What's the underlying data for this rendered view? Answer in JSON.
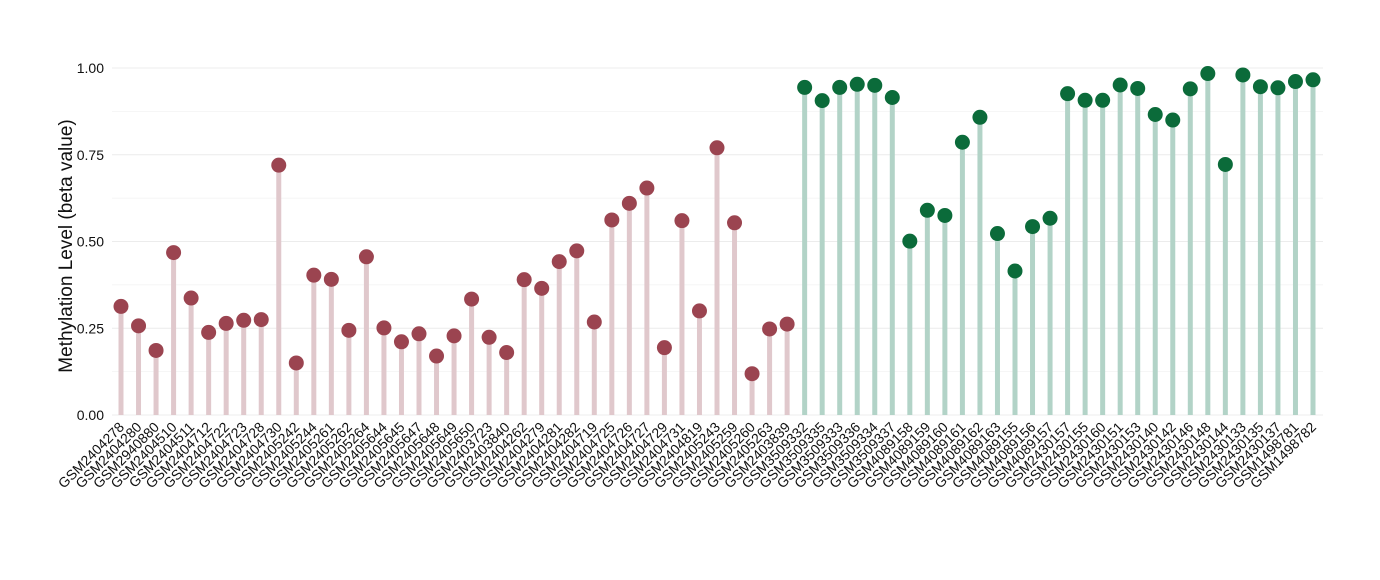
{
  "chart_data": {
    "type": "lollipop",
    "title": "",
    "xlabel": "",
    "ylabel": "Methylation Level (beta value)",
    "ylim": [
      0,
      1
    ],
    "yticks": [
      "0.00",
      "0.25",
      "0.50",
      "0.75",
      "1.00"
    ],
    "grid": "horizontal",
    "legend": "none",
    "colors": {
      "group1_point": "#9b4450",
      "group1_stem": "#e0c8cc",
      "group2_point": "#0b6b3a",
      "group2_stem": "#b2d3c7",
      "grid": "#ececec"
    },
    "points": [
      {
        "label": "GSM2404278",
        "value": 0.313,
        "group": 1
      },
      {
        "label": "GSM2404280",
        "value": 0.257,
        "group": 1
      },
      {
        "label": "GSM2940880",
        "value": 0.186,
        "group": 1
      },
      {
        "label": "GSM2404510",
        "value": 0.468,
        "group": 1
      },
      {
        "label": "GSM2404511",
        "value": 0.337,
        "group": 1
      },
      {
        "label": "GSM2404712",
        "value": 0.238,
        "group": 1
      },
      {
        "label": "GSM2404722",
        "value": 0.264,
        "group": 1
      },
      {
        "label": "GSM2404723",
        "value": 0.273,
        "group": 1
      },
      {
        "label": "GSM2404728",
        "value": 0.275,
        "group": 1
      },
      {
        "label": "GSM2404730",
        "value": 0.72,
        "group": 1
      },
      {
        "label": "GSM2405242",
        "value": 0.15,
        "group": 1
      },
      {
        "label": "GSM2405244",
        "value": 0.403,
        "group": 1
      },
      {
        "label": "GSM2405261",
        "value": 0.391,
        "group": 1
      },
      {
        "label": "GSM2405262",
        "value": 0.244,
        "group": 1
      },
      {
        "label": "GSM2405264",
        "value": 0.456,
        "group": 1
      },
      {
        "label": "GSM2405644",
        "value": 0.251,
        "group": 1
      },
      {
        "label": "GSM2405645",
        "value": 0.211,
        "group": 1
      },
      {
        "label": "GSM2405647",
        "value": 0.234,
        "group": 1
      },
      {
        "label": "GSM2405648",
        "value": 0.17,
        "group": 1
      },
      {
        "label": "GSM2405649",
        "value": 0.228,
        "group": 1
      },
      {
        "label": "GSM2405650",
        "value": 0.334,
        "group": 1
      },
      {
        "label": "GSM2403723",
        "value": 0.224,
        "group": 1
      },
      {
        "label": "GSM2403840",
        "value": 0.18,
        "group": 1
      },
      {
        "label": "GSM2404262",
        "value": 0.39,
        "group": 1
      },
      {
        "label": "GSM2404279",
        "value": 0.365,
        "group": 1
      },
      {
        "label": "GSM2404281",
        "value": 0.442,
        "group": 1
      },
      {
        "label": "GSM2404282",
        "value": 0.473,
        "group": 1
      },
      {
        "label": "GSM2404719",
        "value": 0.268,
        "group": 1
      },
      {
        "label": "GSM2404725",
        "value": 0.562,
        "group": 1
      },
      {
        "label": "GSM2404726",
        "value": 0.61,
        "group": 1
      },
      {
        "label": "GSM2404727",
        "value": 0.654,
        "group": 1
      },
      {
        "label": "GSM2404729",
        "value": 0.194,
        "group": 1
      },
      {
        "label": "GSM2404731",
        "value": 0.56,
        "group": 1
      },
      {
        "label": "GSM2404819",
        "value": 0.3,
        "group": 1
      },
      {
        "label": "GSM2405243",
        "value": 0.77,
        "group": 1
      },
      {
        "label": "GSM2405259",
        "value": 0.554,
        "group": 1
      },
      {
        "label": "GSM2405260",
        "value": 0.119,
        "group": 1
      },
      {
        "label": "GSM2405263",
        "value": 0.248,
        "group": 1
      },
      {
        "label": "GSM2403839",
        "value": 0.262,
        "group": 1
      },
      {
        "label": "GSM3509332",
        "value": 0.944,
        "group": 2
      },
      {
        "label": "GSM3509335",
        "value": 0.906,
        "group": 2
      },
      {
        "label": "GSM3509333",
        "value": 0.944,
        "group": 2
      },
      {
        "label": "GSM3509336",
        "value": 0.953,
        "group": 2
      },
      {
        "label": "GSM3509334",
        "value": 0.95,
        "group": 2
      },
      {
        "label": "GSM3509337",
        "value": 0.915,
        "group": 2
      },
      {
        "label": "GSM4089158",
        "value": 0.501,
        "group": 2
      },
      {
        "label": "GSM4089159",
        "value": 0.59,
        "group": 2
      },
      {
        "label": "GSM4089160",
        "value": 0.575,
        "group": 2
      },
      {
        "label": "GSM4089161",
        "value": 0.786,
        "group": 2
      },
      {
        "label": "GSM4089162",
        "value": 0.858,
        "group": 2
      },
      {
        "label": "GSM4089163",
        "value": 0.523,
        "group": 2
      },
      {
        "label": "GSM4089155",
        "value": 0.415,
        "group": 2
      },
      {
        "label": "GSM4089156",
        "value": 0.543,
        "group": 2
      },
      {
        "label": "GSM4089157",
        "value": 0.567,
        "group": 2
      },
      {
        "label": "GSM2430157",
        "value": 0.926,
        "group": 2
      },
      {
        "label": "GSM2430155",
        "value": 0.907,
        "group": 2
      },
      {
        "label": "GSM2430160",
        "value": 0.907,
        "group": 2
      },
      {
        "label": "GSM2430151",
        "value": 0.951,
        "group": 2
      },
      {
        "label": "GSM2430153",
        "value": 0.941,
        "group": 2
      },
      {
        "label": "GSM2430140",
        "value": 0.866,
        "group": 2
      },
      {
        "label": "GSM2430142",
        "value": 0.85,
        "group": 2
      },
      {
        "label": "GSM2430146",
        "value": 0.94,
        "group": 2
      },
      {
        "label": "GSM2430148",
        "value": 0.984,
        "group": 2
      },
      {
        "label": "GSM2430144",
        "value": 0.722,
        "group": 2
      },
      {
        "label": "GSM2430133",
        "value": 0.98,
        "group": 2
      },
      {
        "label": "GSM2430135",
        "value": 0.946,
        "group": 2
      },
      {
        "label": "GSM2430137",
        "value": 0.943,
        "group": 2
      },
      {
        "label": "GSM1498781",
        "value": 0.961,
        "group": 2
      },
      {
        "label": "GSM1498782",
        "value": 0.966,
        "group": 2
      }
    ]
  }
}
